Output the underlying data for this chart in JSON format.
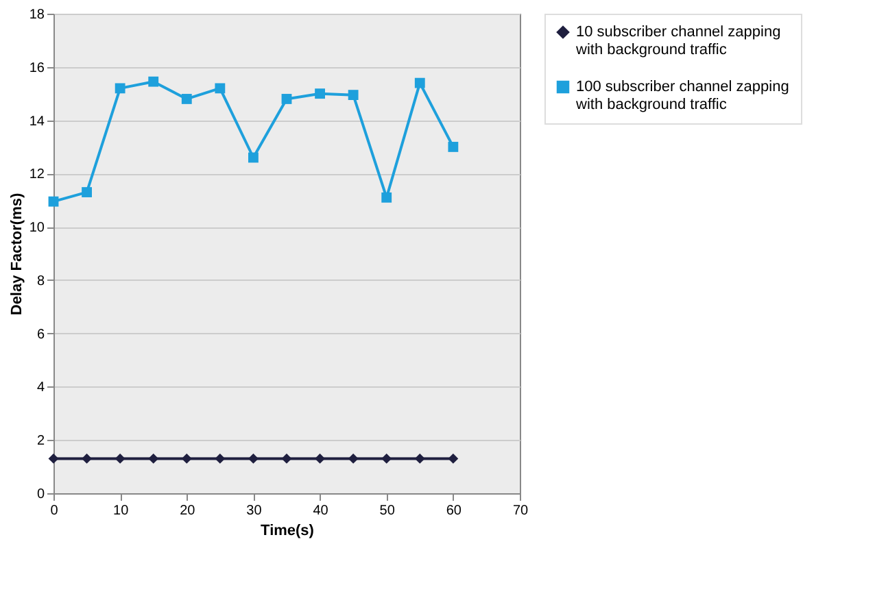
{
  "chart_data": {
    "type": "line",
    "xlabel": "Time(s)",
    "ylabel": "Delay Factor(ms)",
    "x": [
      0,
      5,
      10,
      15,
      20,
      25,
      30,
      35,
      40,
      45,
      50,
      55,
      60
    ],
    "series": [
      {
        "name": "10 subscriber channel zapping with background traffic",
        "color": "#1f1f3f",
        "marker": "diamond",
        "values": [
          1.3,
          1.3,
          1.3,
          1.3,
          1.3,
          1.3,
          1.3,
          1.3,
          1.3,
          1.3,
          1.3,
          1.3,
          1.3
        ]
      },
      {
        "name": "100 subscriber channel zapping with background traffic",
        "color": "#1ea0dc",
        "marker": "square",
        "values": [
          10.95,
          11.3,
          15.2,
          15.45,
          14.8,
          15.2,
          12.6,
          14.8,
          15.0,
          14.95,
          11.1,
          15.4,
          13.0
        ]
      }
    ],
    "xlim": [
      0,
      70
    ],
    "xticks": [
      0,
      10,
      20,
      30,
      40,
      50,
      60,
      70
    ],
    "ylim": [
      0,
      18
    ],
    "yticks": [
      0,
      2,
      4,
      6,
      8,
      10,
      12,
      14,
      16,
      18
    ],
    "grid": "y",
    "legend": "right",
    "line_style": "solid"
  }
}
